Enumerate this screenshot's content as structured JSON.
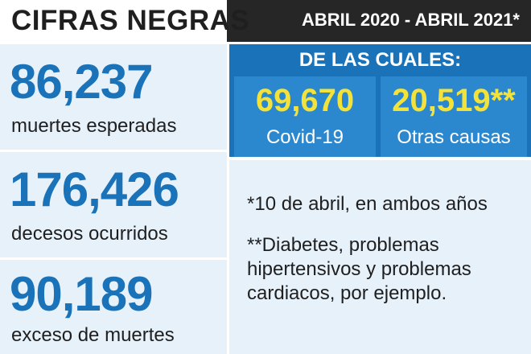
{
  "header": {
    "title": "CIFRAS NEGRAS",
    "dates": "ABRIL 2020 - ABRIL 2021*"
  },
  "stats": [
    {
      "value": "86,237",
      "label": "muertes esperadas"
    },
    {
      "value": "176,426",
      "label": "decesos ocurridos"
    },
    {
      "value": "90,189",
      "label": "exceso de muertes"
    }
  ],
  "breakdown": {
    "title": "DE LAS CUALES:",
    "covid": {
      "value": "69,670",
      "label": "Covid-19"
    },
    "otras": {
      "value": "20,519**",
      "label": "Otras causas"
    }
  },
  "notes": {
    "note1": "*10 de abril, en ambos años",
    "note2": "**Diabetes, problemas hipertensivos y problemas cardiacos, por ejemplo."
  },
  "colors": {
    "header_bg": "#262626",
    "accent_blue": "#1a72b8",
    "light_blue": "#e6f1fa",
    "highlight_yellow": "#f3e23a"
  }
}
